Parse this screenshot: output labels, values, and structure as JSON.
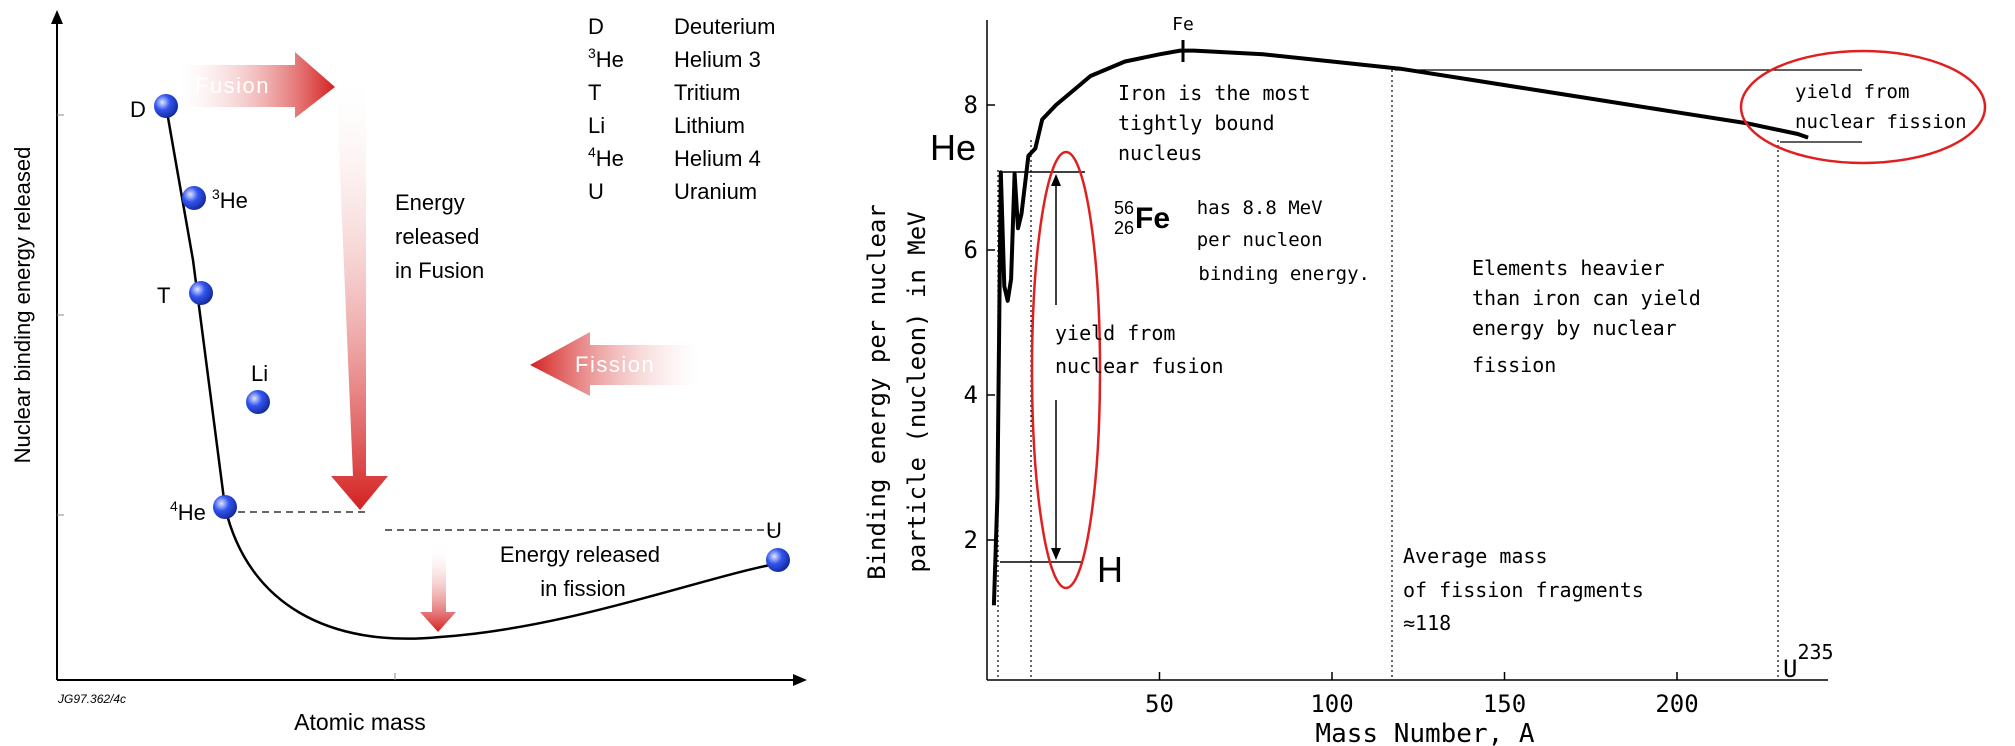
{
  "left_panel": {
    "ylabel": "Nuclear binding energy released",
    "xlabel": "Atomic mass",
    "code": "JG97.362/4c",
    "fusion_label": "Fusion",
    "fission_label": "Fission",
    "energy_fusion": [
      "Energy",
      "released",
      "in Fusion"
    ],
    "energy_fission": [
      "Energy released",
      "in fission"
    ],
    "legend": [
      {
        "sym": "D",
        "sup": "",
        "name": "Deuterium"
      },
      {
        "sym": "He",
        "sup": "3",
        "name": "Helium 3"
      },
      {
        "sym": "T",
        "sup": "",
        "name": "Tritium"
      },
      {
        "sym": "Li",
        "sup": "",
        "name": "Lithium"
      },
      {
        "sym": "He",
        "sup": "4",
        "name": "Helium 4"
      },
      {
        "sym": "U",
        "sup": "",
        "name": "Uranium"
      }
    ],
    "points": [
      {
        "sym": "D",
        "sup": ""
      },
      {
        "sym": "He",
        "sup": "3"
      },
      {
        "sym": "T",
        "sup": ""
      },
      {
        "sym": "Li",
        "sup": ""
      },
      {
        "sym": "He",
        "sup": "4"
      },
      {
        "sym": "U",
        "sup": ""
      }
    ],
    "colors": {
      "arrow": "#d42020",
      "point": "#3355ee"
    }
  },
  "chart_data": {
    "type": "line",
    "xlabel": "Mass Number, A",
    "ylabel_lines": [
      "Binding energy per nuclear",
      "particle (nucleon) in MeV"
    ],
    "xlim": [
      0,
      240
    ],
    "ylim": [
      0,
      9
    ],
    "x_ticks": [
      50,
      100,
      150,
      200
    ],
    "y_ticks": [
      2,
      4,
      6,
      8
    ],
    "series": [
      {
        "x": [
          2,
          3,
          4,
          5,
          6,
          7,
          8,
          9,
          10,
          12,
          14,
          16,
          20,
          25,
          30,
          40,
          50,
          56,
          60,
          80,
          100,
          120,
          140,
          160,
          180,
          200,
          220,
          235,
          238
        ],
        "y": [
          1.1,
          2.6,
          7.07,
          5.5,
          5.3,
          5.6,
          7.05,
          6.3,
          6.5,
          7.3,
          7.4,
          7.8,
          8.0,
          8.2,
          8.4,
          8.6,
          8.7,
          8.75,
          8.75,
          8.7,
          8.6,
          8.5,
          8.35,
          8.2,
          8.05,
          7.9,
          7.75,
          7.6,
          7.55
        ]
      }
    ],
    "labels": {
      "fe_tick": "Fe",
      "he": "He",
      "h": "H",
      "iron_text": [
        "Iron is the most",
        "tightly bound",
        "nucleus"
      ],
      "fe_mass": "56",
      "fe_z": "26",
      "fe_sym": "Fe",
      "fe_text": [
        "has 8.8 MeV",
        "per nucleon",
        "binding energy."
      ],
      "heavier_text": [
        "Elements heavier",
        "than iron can yield",
        "energy by nuclear",
        "fission"
      ],
      "fusion_yield": [
        "yield from",
        "nuclear fusion"
      ],
      "fission_yield": [
        "yield from",
        "nuclear fission"
      ],
      "average_text": [
        "Average mass",
        "of fission fragments",
        "≈118"
      ],
      "u_label": "U",
      "u_sup": "235"
    },
    "colors": {
      "curve": "#000000",
      "ellipse": "#e02020"
    }
  }
}
